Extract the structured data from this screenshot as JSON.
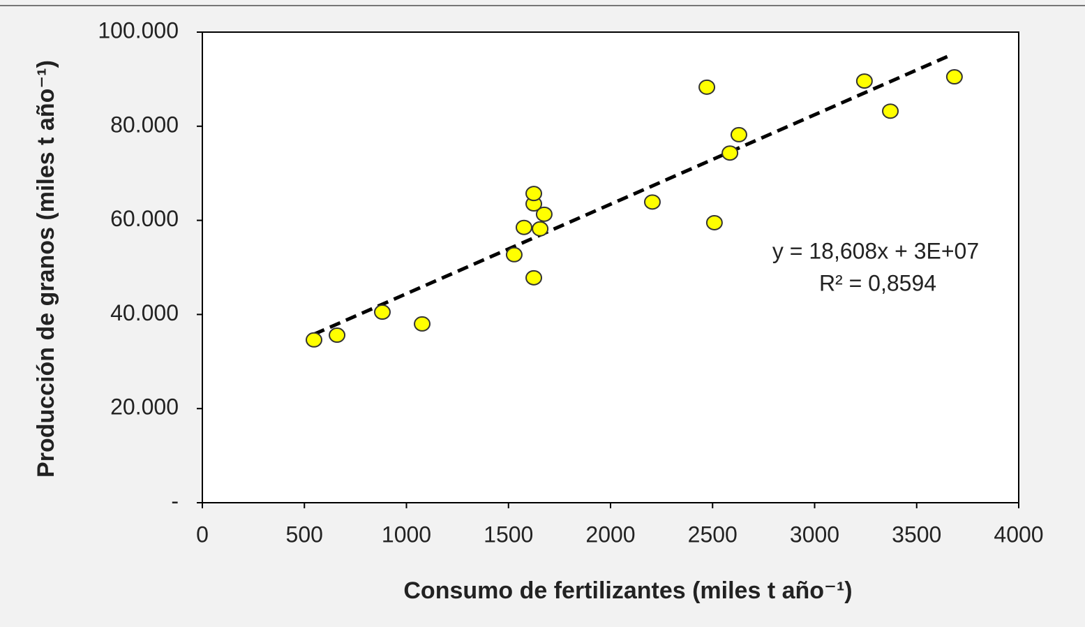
{
  "chart_data": {
    "type": "scatter",
    "xlabel": "Consumo de fertilizantes (miles t año⁻¹)",
    "ylabel": "Producción de granos (miles t año⁻¹)",
    "annotations": [
      "y = 18,608x + 3E+07",
      "R² = 0,8594"
    ],
    "x": [
      547,
      660,
      882,
      1077,
      1528,
      1576,
      1624,
      1624,
      1624,
      1655,
      1675,
      2205,
      2472,
      2509,
      2585,
      2629,
      3244,
      3371,
      3685
    ],
    "series": [
      {
        "color": "#ffff00",
        "values": [
          34600,
          35600,
          40500,
          38000,
          52700,
          58500,
          47800,
          63500,
          65700,
          58200,
          61300,
          63900,
          88300,
          59500,
          74300,
          78200,
          89600,
          83200,
          90500
        ]
      }
    ],
    "trendline": {
      "x": [
        547,
        3650
      ],
      "y": [
        35800,
        94800
      ],
      "color": "#000000"
    },
    "xlim": [
      0,
      4000
    ],
    "xticks": [
      0,
      500,
      1000,
      1500,
      2000,
      2500,
      3000,
      3500,
      4000
    ],
    "ylim": [
      0,
      100000
    ],
    "yticks": [
      {
        "value": 0,
        "label": "-"
      },
      {
        "value": 20000,
        "label": "20.000"
      },
      {
        "value": 40000,
        "label": "40.000"
      },
      {
        "value": 60000,
        "label": "60.000"
      },
      {
        "value": 80000,
        "label": "80.000"
      },
      {
        "value": 100000,
        "label": "100.000"
      }
    ]
  }
}
